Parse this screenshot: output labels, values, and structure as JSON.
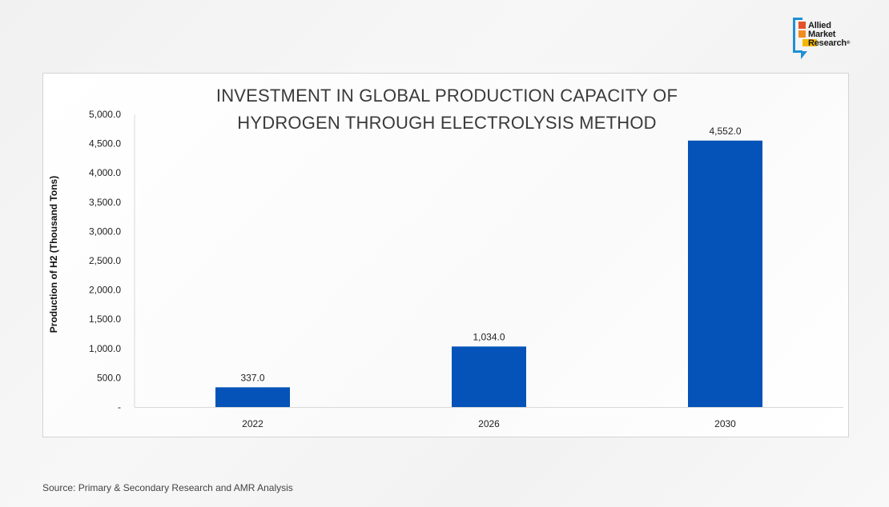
{
  "brand": {
    "logo_line1": "Allied",
    "logo_line2": "Market",
    "logo_line3": "Research",
    "logo_mark": "®",
    "colors": {
      "frame": "#1e90d6",
      "red": "#e4512a",
      "orange": "#f28c1f",
      "yellow": "#f5b800"
    }
  },
  "source": "Source:  Primary & Secondary Research and AMR Analysis",
  "chart_data": {
    "type": "bar",
    "title_lines": [
      "INVESTMENT IN GLOBAL PRODUCTION CAPACITY OF",
      "HYDROGEN THROUGH ELECTROLYSIS METHOD"
    ],
    "xlabel": "",
    "ylabel": "Production of H2 (Thousand Tons)",
    "categories": [
      "2022",
      "2026",
      "2030"
    ],
    "values": [
      337.0,
      1034.0,
      4552.0
    ],
    "value_labels": [
      "337.0",
      "1,034.0",
      "4,552.0"
    ],
    "ylim": [
      0,
      5000
    ],
    "y_ticks": [
      0,
      500,
      1000,
      1500,
      2000,
      2500,
      3000,
      3500,
      4000,
      4500,
      5000
    ],
    "y_tick_labels": [
      "-",
      "500.0",
      "1,000.0",
      "1,500.0",
      "2,000.0",
      "2,500.0",
      "3,000.0",
      "3,500.0",
      "4,000.0",
      "4,500.0",
      "5,000.0"
    ],
    "grid": false,
    "legend": "none",
    "bar_color": "#0553b8"
  }
}
